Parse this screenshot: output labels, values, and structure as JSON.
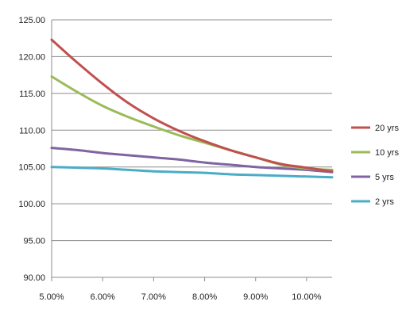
{
  "chart_data": {
    "type": "line",
    "x": [
      5.0,
      5.5,
      6.0,
      6.5,
      7.0,
      7.5,
      8.0,
      8.5,
      9.0,
      9.5,
      10.0,
      10.5
    ],
    "x_tick_values": [
      5.0,
      6.0,
      7.0,
      8.0,
      9.0,
      10.0
    ],
    "x_tick_labels": [
      "5.00%",
      "6.00%",
      "7.00%",
      "8.00%",
      "9.00%",
      "10.00%"
    ],
    "xlim": [
      5.0,
      10.5
    ],
    "y_tick_values": [
      90,
      95,
      100,
      105,
      110,
      115,
      120,
      125
    ],
    "y_tick_labels": [
      "90.00",
      "95.00",
      "100.00",
      "105.00",
      "110.00",
      "115.00",
      "120.00",
      "125.00"
    ],
    "ylim": [
      90,
      125
    ],
    "grid": "horizontal",
    "legend_position": "right",
    "series": [
      {
        "name": "20 yrs",
        "color": "#c0504d",
        "values": [
          122.3,
          119.2,
          116.3,
          113.7,
          111.6,
          109.9,
          108.5,
          107.3,
          106.3,
          105.4,
          104.9,
          104.4
        ]
      },
      {
        "name": "10 yrs",
        "color": "#9bbb59",
        "values": [
          117.3,
          115.2,
          113.3,
          111.8,
          110.5,
          109.3,
          108.3,
          107.3,
          106.3,
          105.3,
          104.8,
          104.6
        ]
      },
      {
        "name": "5 yrs",
        "color": "#8064a2",
        "values": [
          107.6,
          107.3,
          106.9,
          106.6,
          106.3,
          106.0,
          105.6,
          105.3,
          105.0,
          104.8,
          104.6,
          104.3
        ]
      },
      {
        "name": "2 yrs",
        "color": "#4bacc6",
        "values": [
          105.0,
          104.9,
          104.8,
          104.6,
          104.4,
          104.3,
          104.2,
          104.0,
          103.9,
          103.8,
          103.7,
          103.6
        ]
      }
    ]
  }
}
